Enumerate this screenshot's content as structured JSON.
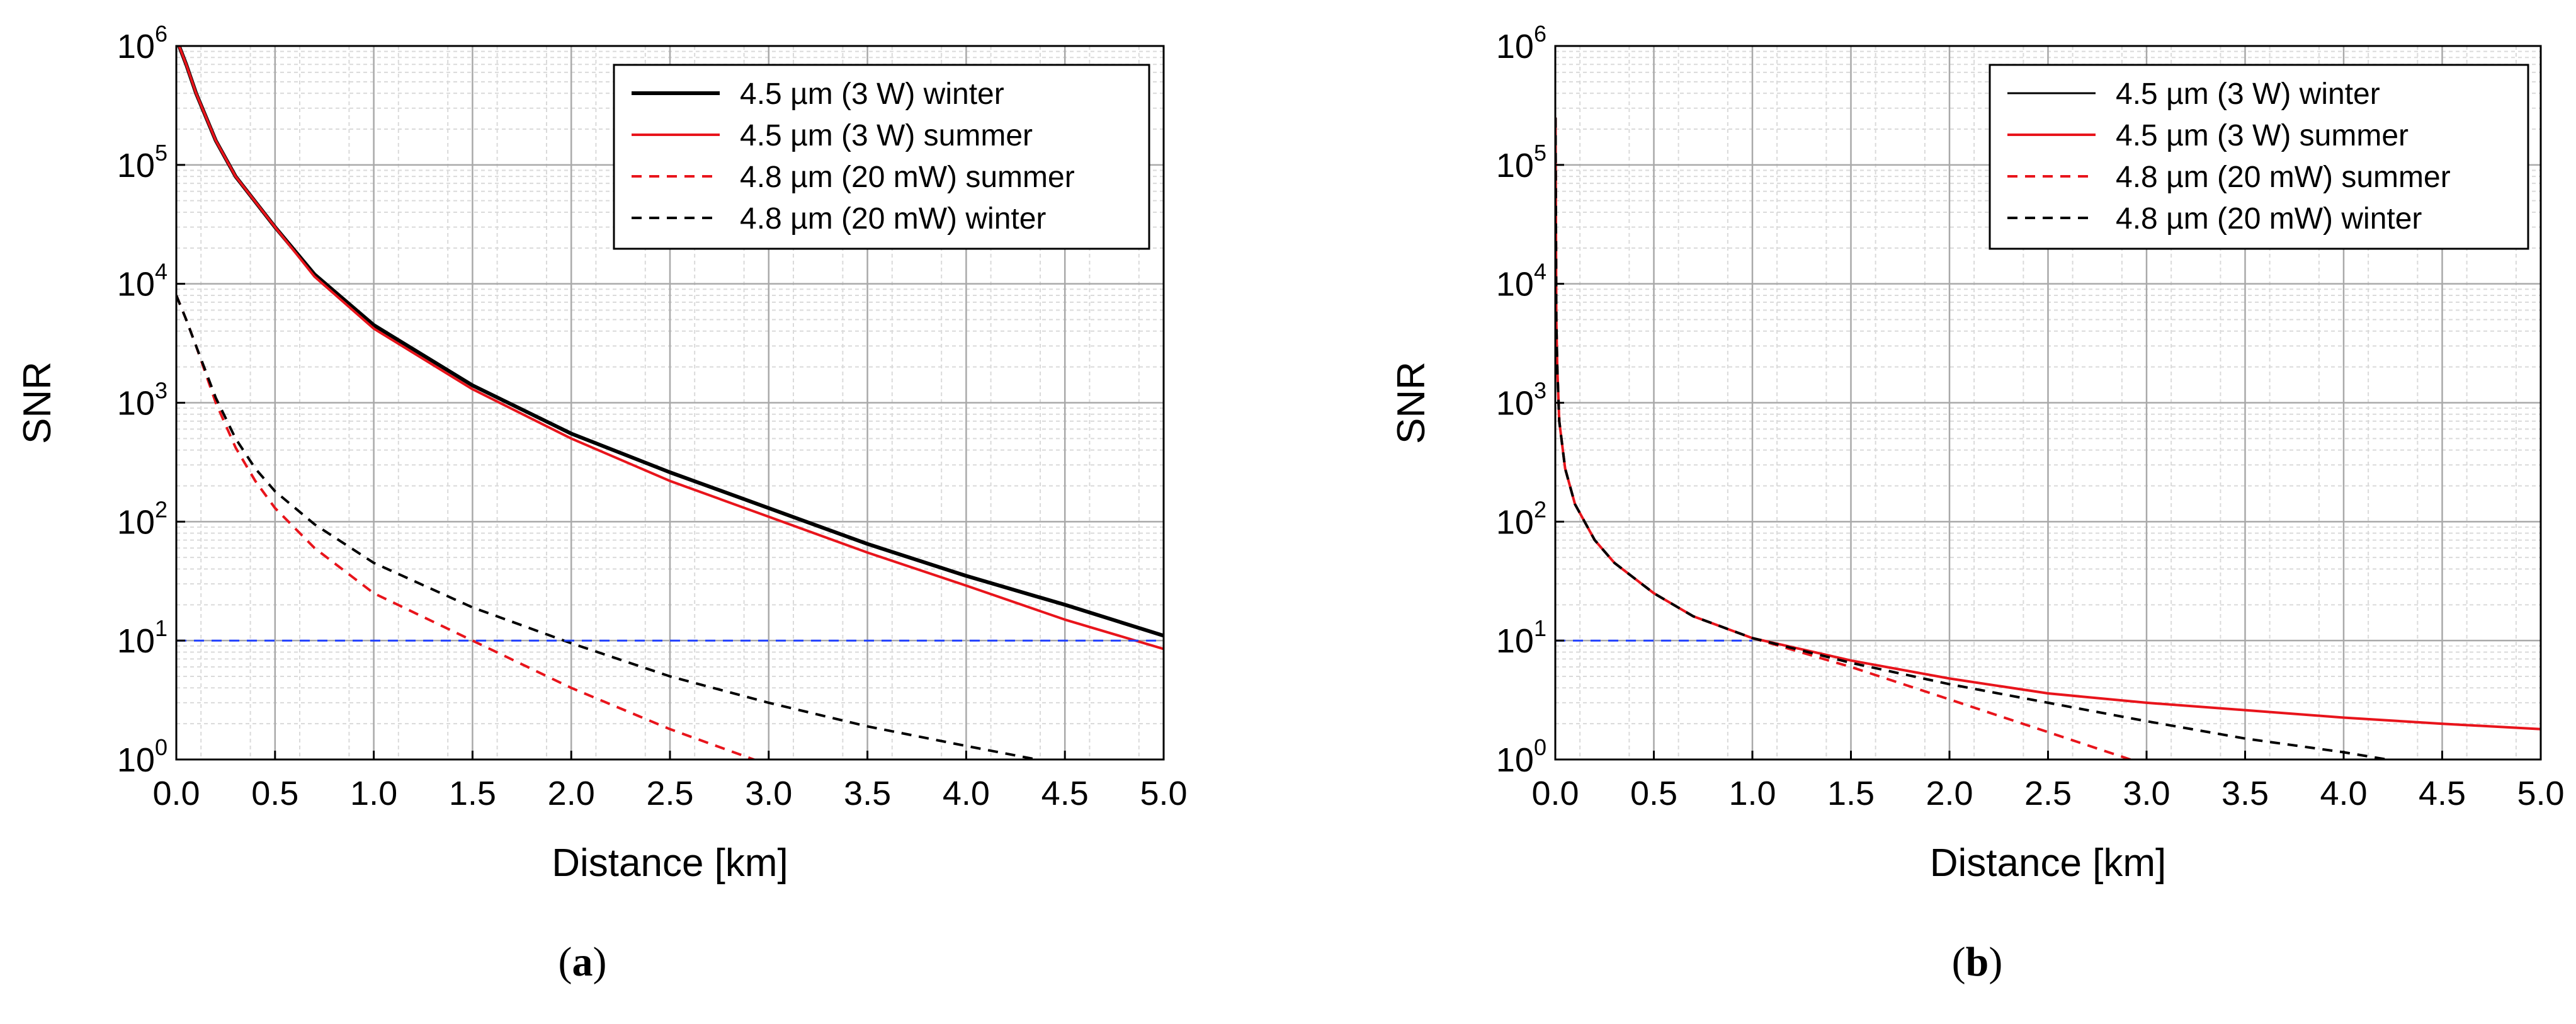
{
  "chart_data": [
    {
      "type": "line",
      "panel_label": "a",
      "xlabel": "Distance [km]",
      "ylabel": "SNR",
      "xlim": [
        0,
        5
      ],
      "ylim": [
        1,
        1000000
      ],
      "yscale": "log",
      "x_ticks": [
        "0.0",
        "0.5",
        "1.0",
        "1.5",
        "2.0",
        "2.5",
        "3.0",
        "3.5",
        "4.0",
        "4.5",
        "5.0"
      ],
      "y_ticks": [
        {
          "base": "10",
          "exp": "0"
        },
        {
          "base": "10",
          "exp": "1"
        },
        {
          "base": "10",
          "exp": "2"
        },
        {
          "base": "10",
          "exp": "3"
        },
        {
          "base": "10",
          "exp": "4"
        },
        {
          "base": "10",
          "exp": "5"
        },
        {
          "base": "10",
          "exp": "6"
        }
      ],
      "grid": true,
      "legend_position": "top-right",
      "series": [
        {
          "name": "4.5 µm (3 W) winter",
          "color": "#000000",
          "dash": "solid",
          "width": 6,
          "x": [
            0,
            0.05,
            0.1,
            0.2,
            0.3,
            0.5,
            0.7,
            1.0,
            1.5,
            2.0,
            2.5,
            3.0,
            3.5,
            4.0,
            4.5,
            5.0
          ],
          "y": [
            1150000,
            700000,
            400000,
            160000,
            80000,
            30000,
            12000,
            4500,
            1400,
            550,
            260,
            130,
            65,
            35,
            20,
            11
          ]
        },
        {
          "name": "4.5 µm (3 W) summer",
          "color": "#e8141b",
          "dash": "solid",
          "width": 4,
          "x": [
            0,
            0.05,
            0.1,
            0.2,
            0.3,
            0.5,
            0.7,
            1.0,
            1.5,
            2.0,
            2.5,
            3.0,
            3.5,
            4.0,
            4.5,
            5.0
          ],
          "y": [
            1150000,
            700000,
            400000,
            160000,
            80000,
            30000,
            11500,
            4200,
            1300,
            500,
            220,
            110,
            55,
            29,
            15,
            8.5
          ]
        },
        {
          "name": "4.8 µm (20 mW) summer",
          "color": "#e8141b",
          "dash": "dashed",
          "width": 4,
          "x": [
            0,
            0.05,
            0.1,
            0.2,
            0.3,
            0.4,
            0.5,
            0.7,
            1.0,
            1.5,
            2.0,
            2.5,
            3.0
          ],
          "y": [
            8000,
            5000,
            3000,
            1000,
            420,
            220,
            130,
            60,
            25,
            10,
            4,
            1.8,
            0.9
          ]
        },
        {
          "name": "4.8 µm (20 mW) winter",
          "color": "#000000",
          "dash": "dashed",
          "width": 4,
          "x": [
            0,
            0.05,
            0.1,
            0.2,
            0.3,
            0.4,
            0.5,
            0.7,
            1.0,
            1.5,
            2.0,
            2.5,
            3.0,
            3.5,
            4.0,
            4.5
          ],
          "y": [
            8000,
            5000,
            3000,
            1100,
            500,
            280,
            180,
            95,
            45,
            19,
            9.5,
            5,
            3,
            1.9,
            1.3,
            0.9
          ]
        },
        {
          "name": "SNR = 10 threshold",
          "color": "#1f3fff",
          "dash": "dashed",
          "width": 3,
          "legend": false,
          "x": [
            0,
            5
          ],
          "y": [
            10,
            10
          ]
        }
      ]
    },
    {
      "type": "line",
      "panel_label": "b",
      "xlabel": "Distance [km]",
      "ylabel": "SNR",
      "xlim": [
        0,
        5
      ],
      "ylim": [
        1,
        1000000
      ],
      "yscale": "log",
      "x_ticks": [
        "0.0",
        "0.5",
        "1.0",
        "1.5",
        "2.0",
        "2.5",
        "3.0",
        "3.5",
        "4.0",
        "4.5",
        "5.0"
      ],
      "y_ticks": [
        {
          "base": "10",
          "exp": "0"
        },
        {
          "base": "10",
          "exp": "1"
        },
        {
          "base": "10",
          "exp": "2"
        },
        {
          "base": "10",
          "exp": "3"
        },
        {
          "base": "10",
          "exp": "4"
        },
        {
          "base": "10",
          "exp": "5"
        },
        {
          "base": "10",
          "exp": "6"
        }
      ],
      "grid": true,
      "legend_position": "top-right",
      "series": [
        {
          "name": "4.5 µm (3 W) winter",
          "color": "#000000",
          "dash": "solid",
          "width": 3,
          "x": [
            0.001,
            0.005,
            0.01,
            0.02,
            0.05,
            0.1,
            0.2,
            0.3,
            0.5,
            0.7,
            1.0,
            1.5,
            2.0,
            2.5,
            3.0,
            3.5,
            4.0,
            4.5,
            5.0
          ],
          "y": [
            250000,
            5000,
            2000,
            700,
            280,
            140,
            70,
            45,
            25,
            16,
            10.5,
            6.8,
            4.8,
            3.6,
            3.0,
            2.6,
            2.25,
            2.0,
            1.8
          ]
        },
        {
          "name": "4.5 µm (3 W) summer",
          "color": "#e8141b",
          "dash": "solid",
          "width": 4,
          "x": [
            0.001,
            0.005,
            0.01,
            0.02,
            0.05,
            0.1,
            0.2,
            0.3,
            0.5,
            0.7,
            1.0,
            1.5,
            2.0,
            2.5,
            3.0,
            3.5,
            4.0,
            4.5,
            5.0
          ],
          "y": [
            250000,
            5000,
            2000,
            700,
            280,
            140,
            70,
            45,
            25,
            16,
            10.5,
            6.8,
            4.8,
            3.6,
            3.0,
            2.6,
            2.25,
            2.0,
            1.8
          ]
        },
        {
          "name": "4.8 µm (20 mW) summer",
          "color": "#e8141b",
          "dash": "dashed",
          "width": 4,
          "x": [
            0.001,
            0.005,
            0.01,
            0.02,
            0.05,
            0.1,
            0.2,
            0.3,
            0.5,
            0.7,
            1.0,
            1.5,
            2.0,
            2.5,
            3.0
          ],
          "y": [
            250000,
            5000,
            2000,
            700,
            280,
            140,
            70,
            45,
            25,
            16,
            10.5,
            6.0,
            3.2,
            1.7,
            0.9
          ]
        },
        {
          "name": "4.8 µm (20 mW) winter",
          "color": "#000000",
          "dash": "dashed",
          "width": 4,
          "x": [
            0.001,
            0.005,
            0.01,
            0.02,
            0.05,
            0.1,
            0.2,
            0.3,
            0.5,
            0.7,
            1.0,
            1.5,
            2.0,
            2.5,
            3.0,
            3.5,
            4.0,
            4.3
          ],
          "y": [
            250000,
            5000,
            2000,
            700,
            280,
            140,
            70,
            45,
            25,
            16,
            10.5,
            6.5,
            4.3,
            3.0,
            2.1,
            1.5,
            1.15,
            0.95
          ]
        },
        {
          "name": "SNR = 10 threshold",
          "color": "#1f3fff",
          "dash": "dashed",
          "width": 3,
          "legend": false,
          "x": [
            0,
            1.0
          ],
          "y": [
            10,
            10
          ]
        }
      ]
    }
  ]
}
